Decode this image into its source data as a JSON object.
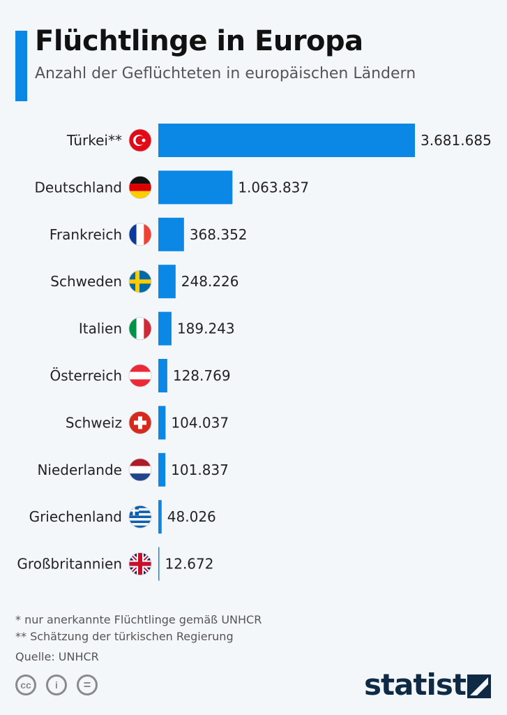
{
  "title": "Flüchtlinge in Europa",
  "subtitle": "Anzahl der Geflüchteten in europäischen Ländern",
  "colors": {
    "accent": "#0b87e6",
    "bar": "#0b87e6",
    "logo": "#0f2a44"
  },
  "chart_data": {
    "type": "bar",
    "orientation": "horizontal",
    "categories": [
      "Türkei**",
      "Deutschland",
      "Frankreich",
      "Schweden",
      "Italien",
      "Österreich",
      "Schweiz",
      "Niederlande",
      "Griechenland",
      "Großbritannien"
    ],
    "flags": [
      "turkey-flag",
      "germany-flag",
      "france-flag",
      "sweden-flag",
      "italy-flag",
      "austria-flag",
      "switzerland-flag",
      "netherlands-flag",
      "greece-flag",
      "uk-flag"
    ],
    "values": [
      3681685,
      1063837,
      368352,
      248226,
      189243,
      128769,
      104037,
      101837,
      48026,
      12672
    ],
    "labels": [
      "3.681.685",
      "1.063.837",
      "368.352",
      "248.226",
      "189.243",
      "128.769",
      "104.037",
      "101.837",
      "48.026",
      "12.672"
    ],
    "grid": false
  },
  "footnotes": {
    "note1": "*   nur anerkannte Flüchtlinge gemäß UNHCR",
    "note2": "** Schätzung der türkischen Regierung",
    "source": "Quelle: UNHCR"
  },
  "license": {
    "cc": "cc",
    "by": "i",
    "nd": "="
  },
  "brand": "statista"
}
